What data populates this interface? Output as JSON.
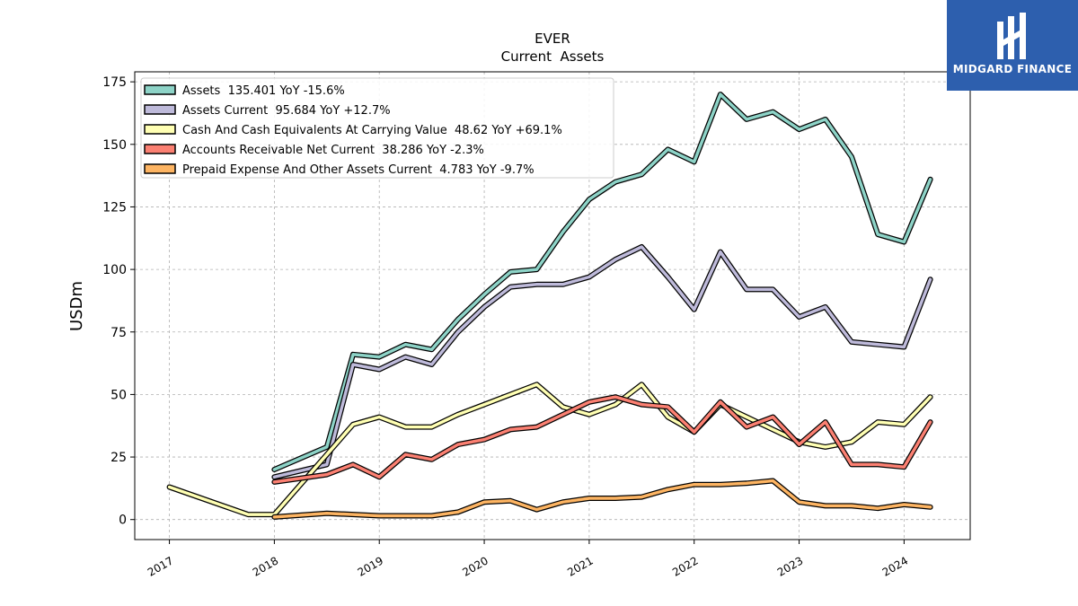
{
  "logo": {
    "text": "MIDGARD FINANCE",
    "icon": "midgard-logo-icon",
    "background": "#2d5fae"
  },
  "chart_data": {
    "type": "line",
    "title": "EVER",
    "subtitle": "Current  Assets",
    "xlabel": "",
    "ylabel": "USDm",
    "xlim": [
      2016.67,
      2024.63
    ],
    "ylim": [
      -8,
      179
    ],
    "x_ticks": [
      2017,
      2018,
      2019,
      2020,
      2021,
      2022,
      2023,
      2024
    ],
    "x_tick_labels": [
      "2017",
      "2018",
      "2019",
      "2020",
      "2021",
      "2022",
      "2023",
      "2024"
    ],
    "y_ticks": [
      0,
      25,
      50,
      75,
      100,
      125,
      150,
      175
    ],
    "y_tick_labels": [
      "0",
      "25",
      "50",
      "75",
      "100",
      "125",
      "150",
      "175"
    ],
    "grid": true,
    "legend_position": "top-left",
    "series": [
      {
        "name": "Assets  135.401 YoY -15.6%",
        "color": "#8dd3c7",
        "points": [
          [
            2018.0,
            20
          ],
          [
            2018.5,
            29
          ],
          [
            2018.75,
            66
          ],
          [
            2019.0,
            65
          ],
          [
            2019.25,
            70
          ],
          [
            2019.5,
            68
          ],
          [
            2019.75,
            80
          ],
          [
            2020.0,
            90
          ],
          [
            2020.25,
            99
          ],
          [
            2020.5,
            100
          ],
          [
            2020.75,
            115
          ],
          [
            2021.0,
            128
          ],
          [
            2021.25,
            135
          ],
          [
            2021.5,
            138
          ],
          [
            2021.75,
            148
          ],
          [
            2022.0,
            143
          ],
          [
            2022.25,
            170
          ],
          [
            2022.5,
            160
          ],
          [
            2022.75,
            163
          ],
          [
            2023.0,
            156
          ],
          [
            2023.25,
            160
          ],
          [
            2023.5,
            145
          ],
          [
            2023.75,
            114
          ],
          [
            2024.0,
            111
          ],
          [
            2024.25,
            136
          ]
        ]
      },
      {
        "name": "Assets Current  95.684 YoY +12.7%",
        "color": "#bebada",
        "points": [
          [
            2018.0,
            17
          ],
          [
            2018.5,
            22
          ],
          [
            2018.75,
            62
          ],
          [
            2019.0,
            60
          ],
          [
            2019.25,
            65
          ],
          [
            2019.5,
            62
          ],
          [
            2019.75,
            75
          ],
          [
            2020.0,
            85
          ],
          [
            2020.25,
            93
          ],
          [
            2020.5,
            94
          ],
          [
            2020.75,
            94
          ],
          [
            2021.0,
            97
          ],
          [
            2021.25,
            104
          ],
          [
            2021.5,
            109
          ],
          [
            2021.75,
            97
          ],
          [
            2022.0,
            84
          ],
          [
            2022.25,
            107
          ],
          [
            2022.5,
            92
          ],
          [
            2022.75,
            92
          ],
          [
            2023.0,
            81
          ],
          [
            2023.25,
            85
          ],
          [
            2023.5,
            71
          ],
          [
            2023.75,
            70
          ],
          [
            2024.0,
            69
          ],
          [
            2024.25,
            96
          ]
        ]
      },
      {
        "name": "Cash And Cash Equivalents At Carrying Value  48.62 YoY +69.1%",
        "color": "#ffffb3",
        "points": [
          [
            2017.0,
            13
          ],
          [
            2017.75,
            2
          ],
          [
            2018.0,
            2
          ],
          [
            2018.5,
            26
          ],
          [
            2018.75,
            38
          ],
          [
            2019.0,
            41
          ],
          [
            2019.25,
            37
          ],
          [
            2019.5,
            37
          ],
          [
            2019.75,
            42
          ],
          [
            2020.0,
            46
          ],
          [
            2020.25,
            50
          ],
          [
            2020.5,
            54
          ],
          [
            2020.75,
            45
          ],
          [
            2021.0,
            42
          ],
          [
            2021.25,
            46
          ],
          [
            2021.5,
            54
          ],
          [
            2021.75,
            41
          ],
          [
            2022.0,
            35
          ],
          [
            2022.25,
            46
          ],
          [
            2022.5,
            41
          ],
          [
            2022.75,
            36
          ],
          [
            2023.0,
            31
          ],
          [
            2023.25,
            29
          ],
          [
            2023.5,
            31
          ],
          [
            2023.75,
            39
          ],
          [
            2024.0,
            38
          ],
          [
            2024.25,
            49
          ]
        ]
      },
      {
        "name": "Accounts Receivable Net Current  38.286 YoY -2.3%",
        "color": "#fb8072",
        "points": [
          [
            2018.0,
            15
          ],
          [
            2018.5,
            18
          ],
          [
            2018.75,
            22
          ],
          [
            2019.0,
            17
          ],
          [
            2019.25,
            26
          ],
          [
            2019.5,
            24
          ],
          [
            2019.75,
            30
          ],
          [
            2020.0,
            32
          ],
          [
            2020.25,
            36
          ],
          [
            2020.5,
            37
          ],
          [
            2020.75,
            42
          ],
          [
            2021.0,
            47
          ],
          [
            2021.25,
            49
          ],
          [
            2021.5,
            46
          ],
          [
            2021.75,
            45
          ],
          [
            2022.0,
            35
          ],
          [
            2022.25,
            47
          ],
          [
            2022.5,
            37
          ],
          [
            2022.75,
            41
          ],
          [
            2023.0,
            30
          ],
          [
            2023.25,
            39
          ],
          [
            2023.5,
            22
          ],
          [
            2023.75,
            22
          ],
          [
            2024.0,
            21
          ],
          [
            2024.25,
            39
          ]
        ]
      },
      {
        "name": "Prepaid Expense And Other Assets Current  4.783 YoY -9.7%",
        "color": "#fdb462",
        "points": [
          [
            2018.0,
            1
          ],
          [
            2018.5,
            2.5
          ],
          [
            2019.0,
            1.5
          ],
          [
            2019.5,
            1.5
          ],
          [
            2019.75,
            3
          ],
          [
            2020.0,
            7
          ],
          [
            2020.25,
            7.5
          ],
          [
            2020.5,
            4
          ],
          [
            2020.75,
            7
          ],
          [
            2021.0,
            8.5
          ],
          [
            2021.25,
            8.5
          ],
          [
            2021.5,
            9
          ],
          [
            2021.75,
            12
          ],
          [
            2022.0,
            14
          ],
          [
            2022.25,
            14
          ],
          [
            2022.5,
            14.5
          ],
          [
            2022.75,
            15.5
          ],
          [
            2023.0,
            7
          ],
          [
            2023.25,
            5.5
          ],
          [
            2023.5,
            5.5
          ],
          [
            2023.75,
            4.5
          ],
          [
            2024.0,
            6
          ],
          [
            2024.25,
            5
          ]
        ]
      }
    ]
  }
}
